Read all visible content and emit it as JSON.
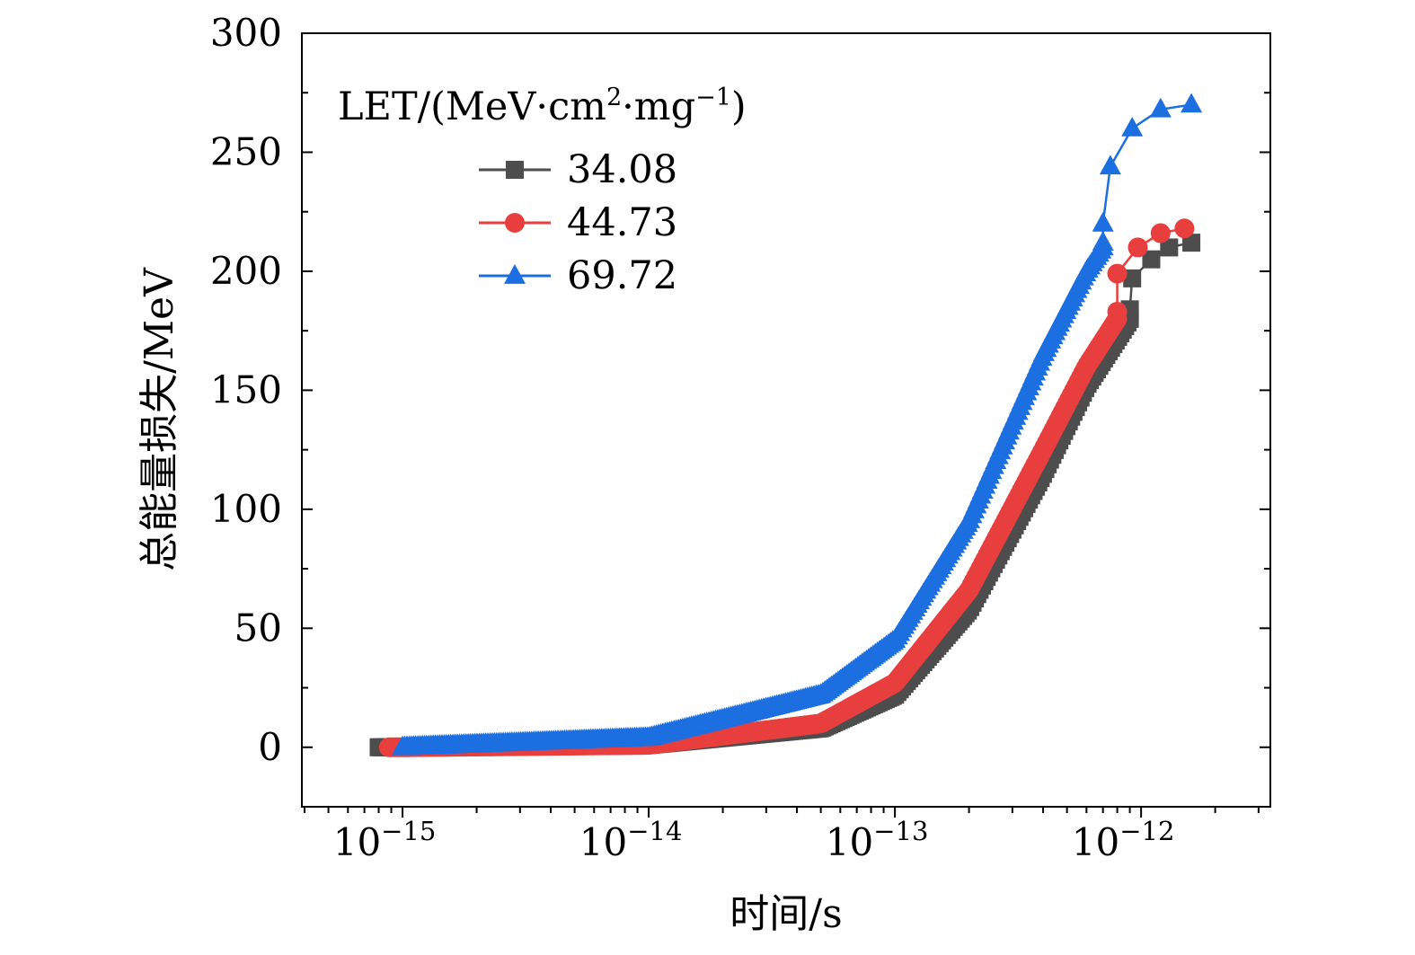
{
  "chart_data": {
    "type": "scatter",
    "x_scale": "log",
    "x_ticks": [
      {
        "value": 1e-15,
        "base": "10",
        "exp": "−15"
      },
      {
        "value": 1e-14,
        "base": "10",
        "exp": "−14"
      },
      {
        "value": 1e-13,
        "base": "10",
        "exp": "−13"
      },
      {
        "value": 1e-12,
        "base": "10",
        "exp": "−12"
      }
    ],
    "xlim": [
      3.9e-16,
      3.35e-12
    ],
    "ylim": [
      -25,
      300
    ],
    "y_ticks": [
      "0",
      "50",
      "100",
      "150",
      "200",
      "250",
      "300"
    ],
    "y_tick_values": [
      0,
      50,
      100,
      150,
      200,
      250,
      300
    ],
    "xlabel": "时间/s",
    "ylabel": "总能量损失/MeV",
    "legend": {
      "title_prefix": "LET/(MeV·cm",
      "title_sup1": "2",
      "title_mid": "·mg",
      "title_sup2": "−1",
      "title_suffix": ")",
      "placement": "top-left"
    },
    "grid": false,
    "series": [
      {
        "name": "34.08",
        "color": "#4d4d4d",
        "marker": "square",
        "dense_x": [
          8e-16,
          1e-15,
          1e-14,
          5e-14,
          1e-13,
          2e-13,
          4e-13,
          6e-13,
          9e-13
        ],
        "dense_y": [
          0,
          0,
          1,
          8,
          22,
          58,
          115,
          152,
          180
        ],
        "tail": [
          [
            9e-13,
            184
          ],
          [
            9.2e-13,
            197
          ],
          [
            1.1e-12,
            205
          ],
          [
            1.3e-12,
            210
          ],
          [
            1.6e-12,
            212
          ]
        ]
      },
      {
        "name": "44.73",
        "color": "#e83e3e",
        "marker": "circle",
        "dense_x": [
          8.8e-16,
          1e-15,
          1e-14,
          5e-14,
          1e-13,
          2e-13,
          4e-13,
          6e-13,
          8e-13
        ],
        "dense_y": [
          0,
          0,
          1,
          10,
          27,
          66,
          125,
          160,
          180
        ],
        "tail": [
          [
            8e-13,
            183
          ],
          [
            8e-13,
            199
          ],
          [
            9.7e-13,
            210
          ],
          [
            1.2e-12,
            216
          ],
          [
            1.5e-12,
            218
          ]
        ]
      },
      {
        "name": "69.72",
        "color": "#1c6fe0",
        "marker": "triangle",
        "dense_x": [
          1e-15,
          1e-14,
          5e-14,
          1e-13,
          2e-13,
          4e-13,
          6e-13,
          7e-13
        ],
        "dense_y": [
          0,
          4,
          22,
          45,
          95,
          165,
          200,
          210
        ],
        "tail": [
          [
            7e-13,
            212
          ],
          [
            7e-13,
            220
          ],
          [
            7.5e-13,
            244
          ],
          [
            9.2e-13,
            260
          ],
          [
            1.2e-12,
            268
          ],
          [
            1.6e-12,
            270
          ]
        ]
      }
    ]
  }
}
